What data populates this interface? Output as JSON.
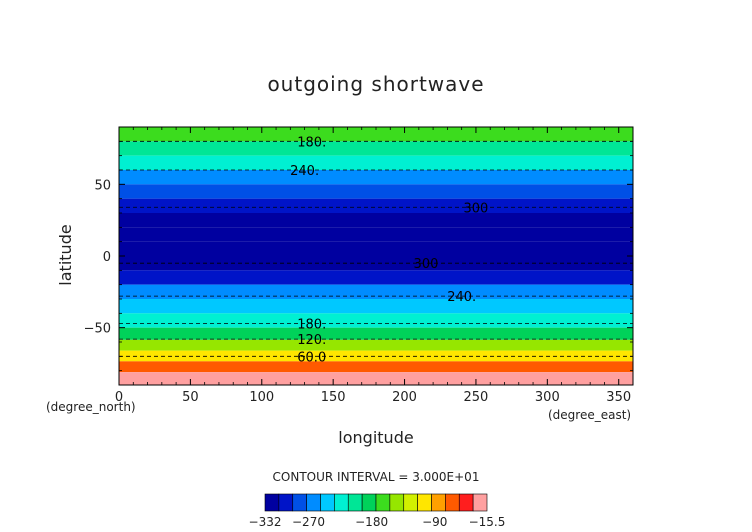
{
  "chart_data": {
    "type": "heatmap",
    "title": "outgoing shortwave",
    "xlabel": "longitude",
    "ylabel": "latitude",
    "x_unit_label": "(degree_east)",
    "y_unit_label": "(degree_north)",
    "xlim": [
      0,
      360
    ],
    "ylim": [
      -90,
      90
    ],
    "x_ticks": [
      0,
      50,
      100,
      150,
      200,
      250,
      300,
      350
    ],
    "y_ticks": [
      -50,
      0,
      50
    ],
    "x_tick_labels": [
      "0",
      "50",
      "100",
      "150",
      "200",
      "250",
      "300",
      "350"
    ],
    "y_tick_labels": [
      "−50",
      "0",
      "50"
    ],
    "contour_interval_text": "CONTOUR INTERVAL = 3.000E+01",
    "colorbar": {
      "min": -332,
      "max": -15.5,
      "tick_values": [
        -332,
        -270,
        -180,
        -90,
        -15.5
      ],
      "tick_labels": [
        "−332",
        "−270",
        "−180",
        "−90",
        "−15.5"
      ],
      "colors": [
        "#0000a0",
        "#0014c8",
        "#0050e6",
        "#008cff",
        "#00c8ff",
        "#00f0d2",
        "#00e696",
        "#00d25a",
        "#3cdc1e",
        "#96e600",
        "#d2f000",
        "#ffe600",
        "#ffa000",
        "#ff5a00",
        "#ff1e1e",
        "#ffa0a0"
      ]
    },
    "latitude_band_values": [
      {
        "lat": 85,
        "value": -165
      },
      {
        "lat": 75,
        "value": -195
      },
      {
        "lat": 65,
        "value": -225
      },
      {
        "lat": 55,
        "value": -255
      },
      {
        "lat": 45,
        "value": -285
      },
      {
        "lat": 35,
        "value": -310
      },
      {
        "lat": 25,
        "value": -325
      },
      {
        "lat": 15,
        "value": -330
      },
      {
        "lat": 5,
        "value": -332
      },
      {
        "lat": -5,
        "value": -320
      },
      {
        "lat": -15,
        "value": -300
      },
      {
        "lat": -25,
        "value": -270
      },
      {
        "lat": -35,
        "value": -245
      },
      {
        "lat": -45,
        "value": -215
      },
      {
        "lat": -55,
        "value": -180
      },
      {
        "lat": -62,
        "value": -140
      },
      {
        "lat": -70,
        "value": -110
      },
      {
        "lat": -77,
        "value": -60
      },
      {
        "lat": -85,
        "value": -15.5
      }
    ],
    "contour_labels": [
      {
        "text": "180.",
        "lon": 135,
        "lat": 80
      },
      {
        "text": "240.",
        "lon": 130,
        "lat": 60
      },
      {
        "text": "300",
        "lon": 250,
        "lat": 34
      },
      {
        "text": "300",
        "lon": 215,
        "lat": -5
      },
      {
        "text": "240.",
        "lon": 240,
        "lat": -28
      },
      {
        "text": "180.",
        "lon": 135,
        "lat": -47
      },
      {
        "text": "120.",
        "lon": 135,
        "lat": -58
      },
      {
        "text": "60.0",
        "lon": 135,
        "lat": -70
      }
    ],
    "contour_lines_lat": [
      80,
      60,
      34,
      -5,
      -28,
      -47,
      -58,
      -70
    ],
    "grid": false
  }
}
